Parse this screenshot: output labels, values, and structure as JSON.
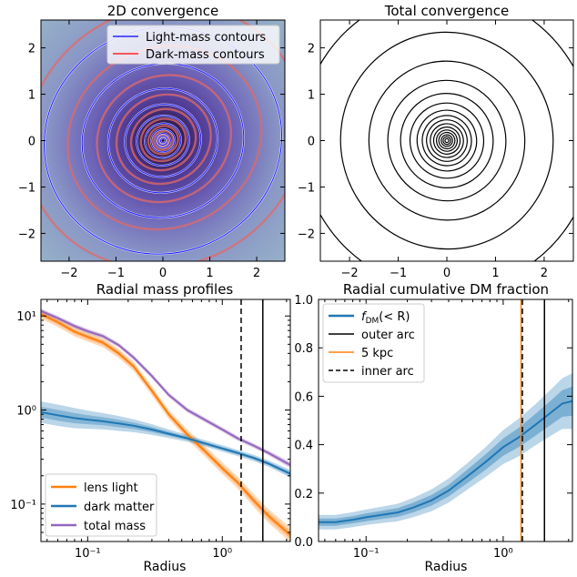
{
  "chart_data": [
    {
      "type": "heatmap",
      "title": "2D convergence",
      "xlim": [
        -2.6,
        2.6
      ],
      "ylim": [
        -2.6,
        2.6
      ],
      "xticks": [
        -2,
        -1,
        0,
        1,
        2
      ],
      "yticks": [
        -2,
        -1,
        0,
        1,
        2
      ],
      "legend": {
        "placement": "top-right",
        "entries": [
          {
            "label": "Light-mass contours",
            "color": "#0000ff"
          },
          {
            "label": "Dark-mass contours",
            "color": "#ff0000"
          }
        ]
      },
      "light_contour_radii": [
        0.05,
        0.1,
        0.16,
        0.25,
        0.38,
        0.55,
        0.8,
        1.15,
        1.7,
        2.5
      ],
      "dark_contour_radii": [
        0.06,
        0.12,
        0.2,
        0.3,
        0.45,
        0.65,
        0.95,
        1.35,
        1.95,
        2.8
      ],
      "colormap": [
        "#241030",
        "#4b3587",
        "#6b5fb5",
        "#8a8fc8",
        "#97b3c9"
      ]
    },
    {
      "type": "contour",
      "title": "Total convergence",
      "xlim": [
        -2.6,
        2.6
      ],
      "ylim": [
        -2.6,
        2.6
      ],
      "xticks": [
        -2,
        -1,
        0,
        1,
        2
      ],
      "yticks": [
        -2,
        -1,
        0,
        1,
        2
      ],
      "contour_radii": [
        0.04,
        0.08,
        0.12,
        0.17,
        0.22,
        0.28,
        0.35,
        0.43,
        0.52,
        0.63,
        0.78,
        0.98,
        1.25,
        1.65,
        2.25,
        3.1
      ],
      "line_color": "#000000"
    },
    {
      "type": "line",
      "title": "Radial mass profiles",
      "xlabel": "Radius",
      "xscale": "log",
      "yscale": "log",
      "xlim": [
        0.045,
        3.2
      ],
      "ylim": [
        0.04,
        15
      ],
      "xtick_labels": [
        {
          "v": 0.1,
          "t": "10⁻¹"
        },
        {
          "v": 1,
          "t": "10⁰"
        }
      ],
      "ytick_labels": [
        {
          "v": 10,
          "t": "10¹"
        },
        {
          "v": 1,
          "t": "10⁰"
        },
        {
          "v": 0.1,
          "t": "10⁻¹"
        }
      ],
      "legend": {
        "placement": "lower-left"
      },
      "x": [
        0.045,
        0.06,
        0.08,
        0.1,
        0.13,
        0.17,
        0.22,
        0.3,
        0.4,
        0.55,
        0.75,
        1.0,
        1.3,
        1.7,
        2.2,
        3.2
      ],
      "series": [
        {
          "name": "lens light",
          "color": "#ff7f0e",
          "values": [
            10.5,
            8.6,
            6.8,
            6.0,
            5.2,
            4.0,
            2.9,
            1.6,
            0.9,
            0.55,
            0.36,
            0.24,
            0.17,
            0.11,
            0.075,
            0.047
          ],
          "spread": [
            1.12,
            1.12,
            1.12,
            1.12,
            1.12,
            1.12,
            1.12,
            1.12,
            1.12,
            1.13,
            1.14,
            1.15,
            1.16,
            1.17,
            1.18,
            1.2
          ]
        },
        {
          "name": "dark matter",
          "color": "#1f77b4",
          "values": [
            0.95,
            0.88,
            0.82,
            0.79,
            0.76,
            0.72,
            0.68,
            0.62,
            0.56,
            0.5,
            0.44,
            0.39,
            0.35,
            0.31,
            0.27,
            0.21
          ],
          "spread": [
            1.3,
            1.3,
            1.28,
            1.25,
            1.22,
            1.2,
            1.17,
            1.14,
            1.11,
            1.09,
            1.08,
            1.08,
            1.08,
            1.08,
            1.08,
            1.1
          ]
        },
        {
          "name": "total mass",
          "color": "#9467bd",
          "values": [
            11.3,
            9.5,
            7.8,
            6.9,
            6.1,
            4.9,
            3.6,
            2.3,
            1.45,
            1.0,
            0.78,
            0.62,
            0.5,
            0.42,
            0.35,
            0.26
          ],
          "spread": [
            1.06,
            1.06,
            1.06,
            1.06,
            1.06,
            1.06,
            1.06,
            1.06,
            1.06,
            1.06,
            1.06,
            1.06,
            1.06,
            1.06,
            1.06,
            1.08
          ]
        }
      ],
      "vlines": [
        {
          "x": 1.38,
          "style": "dashed"
        },
        {
          "x": 2.0,
          "style": "solid"
        }
      ]
    },
    {
      "type": "line",
      "title": "Radial cumulative DM fraction",
      "xlabel": "Radius",
      "xscale": "log",
      "xlim": [
        0.045,
        3.2
      ],
      "ylim": [
        0.0,
        1.0
      ],
      "yticks": [
        0.0,
        0.2,
        0.4,
        0.6,
        0.8,
        1.0
      ],
      "xtick_labels": [
        {
          "v": 0.1,
          "t": "10⁻¹"
        },
        {
          "v": 1,
          "t": "10⁰"
        }
      ],
      "legend": {
        "placement": "top-left",
        "entries": [
          {
            "label": "f_DM(<R)",
            "color": "#1f77b4",
            "style": "solid"
          },
          {
            "label": "outer arc",
            "color": "#000000",
            "style": "solid"
          },
          {
            "label": "5 kpc",
            "color": "#ff7f0e",
            "style": "solid"
          },
          {
            "label": "inner arc",
            "color": "#000000",
            "style": "dashed"
          }
        ]
      },
      "x": [
        0.045,
        0.06,
        0.08,
        0.1,
        0.13,
        0.17,
        0.22,
        0.3,
        0.4,
        0.55,
        0.75,
        1.0,
        1.3,
        1.7,
        2.2,
        2.7,
        3.2
      ],
      "series": [
        {
          "name": "f_DM(<R)",
          "color": "#1f77b4",
          "values": [
            0.08,
            0.08,
            0.09,
            0.1,
            0.11,
            0.12,
            0.14,
            0.17,
            0.21,
            0.27,
            0.33,
            0.39,
            0.43,
            0.48,
            0.53,
            0.57,
            0.58
          ],
          "band_inner": [
            0.015,
            0.015,
            0.015,
            0.016,
            0.017,
            0.018,
            0.02,
            0.022,
            0.024,
            0.028,
            0.032,
            0.036,
            0.04,
            0.045,
            0.05,
            0.055,
            0.06
          ],
          "band_outer": [
            0.03,
            0.03,
            0.031,
            0.032,
            0.034,
            0.036,
            0.04,
            0.045,
            0.05,
            0.055,
            0.062,
            0.07,
            0.078,
            0.085,
            0.095,
            0.105,
            0.115
          ]
        }
      ],
      "vlines": [
        {
          "x": 1.35,
          "style": "solid",
          "color": "#ff7f0e"
        },
        {
          "x": 1.38,
          "style": "dashed",
          "color": "#000000"
        },
        {
          "x": 2.0,
          "style": "solid",
          "color": "#000000"
        }
      ]
    }
  ],
  "text": {
    "t1": "2D convergence",
    "t2": "Total convergence",
    "t3": "Radial mass profiles",
    "t4": "Radial cumulative DM fraction",
    "xl3": "Radius",
    "xl4": "Radius",
    "leg1a": "Light-mass contours",
    "leg1b": "Dark-mass contours",
    "leg3a": "lens light",
    "leg3b": "dark matter",
    "leg3c": "total mass",
    "leg4a_main": "f",
    "leg4a_sub": "DM",
    "leg4a_rest": "(< R)",
    "leg4b": "outer arc",
    "leg4c": "5 kpc",
    "leg4d": "inner arc"
  }
}
